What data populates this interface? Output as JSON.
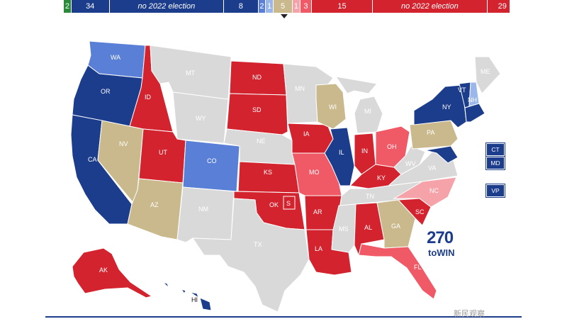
{
  "colors": {
    "solid_dem": "#1c3c8c",
    "likely_dem": "#5a7fd6",
    "lean_dem": "#9ab6ea",
    "toss_up": "#c9b98c",
    "lean_rep": "#f5a3a8",
    "likely_rep": "#ef5a66",
    "solid_rep": "#d2232f",
    "independent": "#2a8a3a",
    "no_election": "#d9d9d9"
  },
  "balance_bar": [
    {
      "label": "2",
      "color": "#2a8a3a",
      "weight": 2
    },
    {
      "label": "34",
      "color": "#1c3c8c",
      "weight": 10
    },
    {
      "label": "no 2022 election",
      "color": "#1c3c8c",
      "weight": 30,
      "italic": true
    },
    {
      "label": "8",
      "color": "#1c3c8c",
      "weight": 9
    },
    {
      "label": "2",
      "color": "#5a7fd6",
      "weight": 2
    },
    {
      "label": "1",
      "color": "#9ab6ea",
      "weight": 2
    },
    {
      "label": "5",
      "color": "#c9b98c",
      "weight": 5
    },
    {
      "label": "1",
      "color": "#f5a3a8",
      "weight": 2
    },
    {
      "label": "3",
      "color": "#ef5a66",
      "weight": 3
    },
    {
      "label": "15",
      "color": "#d2232f",
      "weight": 16
    },
    {
      "label": "no 2022 election",
      "color": "#d2232f",
      "weight": 30,
      "italic": true
    },
    {
      "label": "29",
      "color": "#d2232f",
      "weight": 6
    }
  ],
  "states": {
    "WA": {
      "label": "WA",
      "rating": "likely_dem"
    },
    "OR": {
      "label": "OR",
      "rating": "solid_dem"
    },
    "CA": {
      "label": "CA",
      "rating": "solid_dem"
    },
    "NV": {
      "label": "NV",
      "rating": "toss_up"
    },
    "ID": {
      "label": "ID",
      "rating": "solid_rep"
    },
    "MT": {
      "label": "MT",
      "rating": "no_election"
    },
    "WY": {
      "label": "WY",
      "rating": "no_election"
    },
    "UT": {
      "label": "UT",
      "rating": "solid_rep"
    },
    "AZ": {
      "label": "AZ",
      "rating": "toss_up"
    },
    "CO": {
      "label": "CO",
      "rating": "likely_dem"
    },
    "NM": {
      "label": "NM",
      "rating": "no_election"
    },
    "ND": {
      "label": "ND",
      "rating": "solid_rep"
    },
    "SD": {
      "label": "SD",
      "rating": "solid_rep"
    },
    "NE": {
      "label": "NE",
      "rating": "no_election"
    },
    "KS": {
      "label": "KS",
      "rating": "solid_rep"
    },
    "OK": {
      "label": "OK",
      "rating": "solid_rep"
    },
    "OK_S": {
      "label": "S",
      "rating": "solid_rep"
    },
    "TX": {
      "label": "TX",
      "rating": "no_election"
    },
    "MN": {
      "label": "MN",
      "rating": "no_election"
    },
    "IA": {
      "label": "IA",
      "rating": "solid_rep"
    },
    "MO": {
      "label": "MO",
      "rating": "likely_rep"
    },
    "AR": {
      "label": "AR",
      "rating": "solid_rep"
    },
    "LA": {
      "label": "LA",
      "rating": "solid_rep"
    },
    "WI": {
      "label": "WI",
      "rating": "toss_up"
    },
    "IL": {
      "label": "IL",
      "rating": "solid_dem"
    },
    "MI": {
      "label": "MI",
      "rating": "no_election"
    },
    "IN": {
      "label": "IN",
      "rating": "solid_rep"
    },
    "OH": {
      "label": "OH",
      "rating": "likely_rep"
    },
    "KY": {
      "label": "KY",
      "rating": "solid_rep"
    },
    "TN": {
      "label": "TN",
      "rating": "no_election"
    },
    "MS": {
      "label": "MS",
      "rating": "no_election"
    },
    "AL": {
      "label": "AL",
      "rating": "solid_rep"
    },
    "GA": {
      "label": "GA",
      "rating": "toss_up"
    },
    "FL": {
      "label": "FL",
      "rating": "likely_rep"
    },
    "SC": {
      "label": "SC",
      "rating": "solid_rep"
    },
    "NC": {
      "label": "NC",
      "rating": "lean_rep"
    },
    "VA": {
      "label": "VA",
      "rating": "no_election"
    },
    "WV": {
      "label": "WV",
      "rating": "no_election"
    },
    "PA": {
      "label": "PA",
      "rating": "toss_up"
    },
    "NY": {
      "label": "NY",
      "rating": "solid_dem"
    },
    "VT": {
      "label": "VT",
      "rating": "solid_dem"
    },
    "NH": {
      "label": "NH",
      "rating": "lean_dem"
    },
    "ME": {
      "label": "ME",
      "rating": "no_election"
    },
    "MD_small": {
      "label": "",
      "rating": "solid_dem"
    },
    "AK": {
      "label": "AK",
      "rating": "solid_rep"
    },
    "HI": {
      "label": "HI",
      "rating": "solid_dem"
    }
  },
  "side_boxes": [
    {
      "label": "CT",
      "rating": "solid_dem"
    },
    {
      "label": "MD",
      "rating": "solid_dem"
    },
    {
      "label": "VP",
      "rating": "solid_dem"
    }
  ],
  "logo": {
    "number": "270",
    "sub": "toWIN"
  },
  "watermark": "新民观察"
}
